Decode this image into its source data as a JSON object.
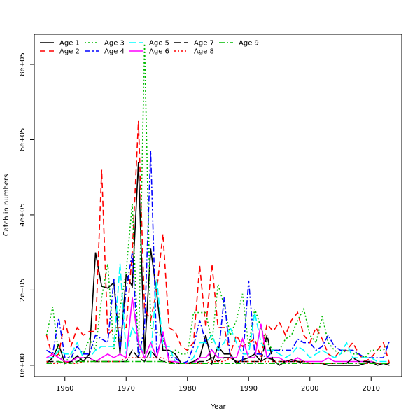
{
  "chart_data": {
    "type": "line",
    "title": "",
    "xlabel": "Year",
    "ylabel": "Catch in numbers",
    "xlim": [
      1955,
      2015
    ],
    "ylim": [
      -30000,
      880000
    ],
    "x_ticks": [
      1960,
      1970,
      1980,
      1990,
      2000,
      2010
    ],
    "x_tick_labels": [
      "1960",
      "1970",
      "1980",
      "1990",
      "2000",
      "2010"
    ],
    "y_ticks": [
      0,
      200000,
      400000,
      600000,
      800000
    ],
    "y_tick_labels": [
      "0e+00",
      "2e+05",
      "4e+05",
      "6e+05",
      "8e+05"
    ],
    "legend_position": "top-left",
    "x": [
      1957,
      1958,
      1959,
      1960,
      1961,
      1962,
      1963,
      1964,
      1965,
      1966,
      1967,
      1968,
      1969,
      1970,
      1971,
      1972,
      1973,
      1974,
      1975,
      1976,
      1977,
      1978,
      1979,
      1980,
      1981,
      1982,
      1983,
      1984,
      1985,
      1986,
      1987,
      1988,
      1989,
      1990,
      1991,
      1992,
      1993,
      1994,
      1995,
      1996,
      1997,
      1998,
      1999,
      2000,
      2001,
      2002,
      2003,
      2004,
      2005,
      2006,
      2007,
      2008,
      2009,
      2010,
      2011,
      2012,
      2013
    ],
    "series": [
      {
        "name": "Age 1",
        "color": "#000000",
        "dash": "solid",
        "values": [
          5000,
          20000,
          55000,
          5000,
          10000,
          25000,
          10000,
          30000,
          300000,
          210000,
          205000,
          220000,
          30000,
          240000,
          210000,
          540000,
          30000,
          310000,
          190000,
          40000,
          40000,
          30000,
          5000,
          5000,
          10000,
          20000,
          80000,
          5000,
          50000,
          30000,
          30000,
          5000,
          15000,
          20000,
          30000,
          10000,
          20000,
          15000,
          0,
          10000,
          15000,
          10000,
          5000,
          5000,
          5000,
          5000,
          0,
          0,
          0,
          0,
          0,
          0,
          5000,
          10000,
          0,
          5000,
          0
        ]
      },
      {
        "name": "Age 2",
        "color": "#ff0000",
        "dash": "8,5",
        "values": [
          80000,
          20000,
          30000,
          120000,
          50000,
          100000,
          80000,
          90000,
          90000,
          520000,
          80000,
          100000,
          100000,
          100000,
          300000,
          650000,
          150000,
          120000,
          200000,
          350000,
          100000,
          90000,
          50000,
          40000,
          60000,
          265000,
          100000,
          270000,
          100000,
          100000,
          30000,
          80000,
          50000,
          60000,
          70000,
          20000,
          110000,
          90000,
          115000,
          80000,
          120000,
          140000,
          80000,
          60000,
          100000,
          70000,
          30000,
          20000,
          40000,
          40000,
          60000,
          30000,
          10000,
          20000,
          40000,
          60000,
          5000
        ]
      },
      {
        "name": "Age 3",
        "color": "#00bb00",
        "dash": "2,3",
        "values": [
          80000,
          155000,
          30000,
          5000,
          30000,
          5000,
          30000,
          70000,
          40000,
          180000,
          270000,
          40000,
          150000,
          250000,
          430000,
          30000,
          855000,
          100000,
          90000,
          70000,
          20000,
          40000,
          30000,
          30000,
          140000,
          140000,
          140000,
          60000,
          215000,
          160000,
          80000,
          120000,
          190000,
          50000,
          150000,
          100000,
          60000,
          40000,
          40000,
          70000,
          80000,
          120000,
          150000,
          80000,
          60000,
          130000,
          60000,
          40000,
          30000,
          40000,
          30000,
          30000,
          20000,
          40000,
          40000,
          40000,
          60000
        ]
      },
      {
        "name": "Age 4",
        "color": "#0000ff",
        "dash": "8,3,2,3",
        "values": [
          40000,
          30000,
          125000,
          20000,
          20000,
          50000,
          30000,
          30000,
          80000,
          70000,
          60000,
          230000,
          40000,
          200000,
          300000,
          20000,
          100000,
          570000,
          30000,
          80000,
          20000,
          20000,
          5000,
          10000,
          50000,
          120000,
          60000,
          40000,
          20000,
          180000,
          20000,
          10000,
          10000,
          225000,
          30000,
          30000,
          20000,
          40000,
          40000,
          40000,
          40000,
          70000,
          60000,
          60000,
          40000,
          50000,
          80000,
          50000,
          40000,
          40000,
          40000,
          30000,
          20000,
          20000,
          20000,
          20000,
          65000
        ]
      },
      {
        "name": "Age 5",
        "color": "#00ffff",
        "dash": "10,4",
        "values": [
          20000,
          20000,
          40000,
          30000,
          30000,
          60000,
          20000,
          20000,
          40000,
          50000,
          50000,
          50000,
          270000,
          30000,
          100000,
          70000,
          20000,
          20000,
          230000,
          50000,
          50000,
          10000,
          5000,
          5000,
          20000,
          60000,
          60000,
          80000,
          40000,
          60000,
          100000,
          60000,
          30000,
          30000,
          140000,
          60000,
          40000,
          40000,
          30000,
          20000,
          30000,
          50000,
          40000,
          20000,
          30000,
          40000,
          30000,
          20000,
          30000,
          60000,
          20000,
          20000,
          20000,
          20000,
          10000,
          10000,
          10000
        ]
      },
      {
        "name": "Age 6",
        "color": "#ff00ff",
        "dash": "solid",
        "values": [
          20000,
          30000,
          20000,
          10000,
          10000,
          20000,
          20000,
          20000,
          10000,
          20000,
          30000,
          20000,
          30000,
          20000,
          180000,
          60000,
          20000,
          60000,
          20000,
          90000,
          10000,
          10000,
          5000,
          5000,
          5000,
          20000,
          20000,
          40000,
          20000,
          20000,
          20000,
          20000,
          70000,
          20000,
          20000,
          110000,
          20000,
          20000,
          20000,
          10000,
          10000,
          20000,
          10000,
          10000,
          10000,
          10000,
          20000,
          10000,
          10000,
          10000,
          10000,
          10000,
          10000,
          10000,
          5000,
          5000,
          5000
        ]
      },
      {
        "name": "Age 7",
        "color": "#000000",
        "dash": "10,4",
        "values": [
          10000,
          10000,
          10000,
          5000,
          10000,
          10000,
          20000,
          20000,
          10000,
          10000,
          10000,
          10000,
          10000,
          10000,
          40000,
          20000,
          10000,
          40000,
          20000,
          10000,
          10000,
          5000,
          5000,
          5000,
          5000,
          10000,
          10000,
          20000,
          10000,
          20000,
          20000,
          10000,
          10000,
          10000,
          10000,
          10000,
          80000,
          10000,
          10000,
          10000,
          10000,
          10000,
          10000,
          5000,
          5000,
          5000,
          5000,
          5000,
          5000,
          5000,
          20000,
          10000,
          10000,
          10000,
          5000,
          5000,
          5000
        ]
      },
      {
        "name": "Age 8",
        "color": "#ff0000",
        "dash": "2,3",
        "values": [
          10000,
          5000,
          5000,
          10000,
          5000,
          5000,
          10000,
          10000,
          10000,
          10000,
          10000,
          10000,
          10000,
          20000,
          20000,
          20000,
          20000,
          20000,
          20000,
          20000,
          10000,
          5000,
          5000,
          5000,
          5000,
          5000,
          5000,
          10000,
          10000,
          10000,
          20000,
          10000,
          10000,
          10000,
          10000,
          10000,
          10000,
          10000,
          10000,
          10000,
          10000,
          10000,
          10000,
          5000,
          5000,
          5000,
          5000,
          5000,
          5000,
          5000,
          5000,
          5000,
          5000,
          5000,
          5000,
          5000,
          5000
        ]
      },
      {
        "name": "Age 9",
        "color": "#00bb00",
        "dash": "8,3,2,3",
        "values": [
          5000,
          5000,
          10000,
          5000,
          5000,
          10000,
          10000,
          10000,
          10000,
          10000,
          10000,
          10000,
          10000,
          10000,
          10000,
          10000,
          10000,
          10000,
          10000,
          10000,
          5000,
          5000,
          5000,
          5000,
          5000,
          5000,
          5000,
          5000,
          5000,
          5000,
          5000,
          5000,
          5000,
          5000,
          5000,
          5000,
          5000,
          5000,
          5000,
          5000,
          5000,
          5000,
          5000,
          5000,
          5000,
          5000,
          5000,
          5000,
          5000,
          5000,
          5000,
          5000,
          5000,
          5000,
          5000,
          5000,
          5000
        ]
      }
    ]
  }
}
